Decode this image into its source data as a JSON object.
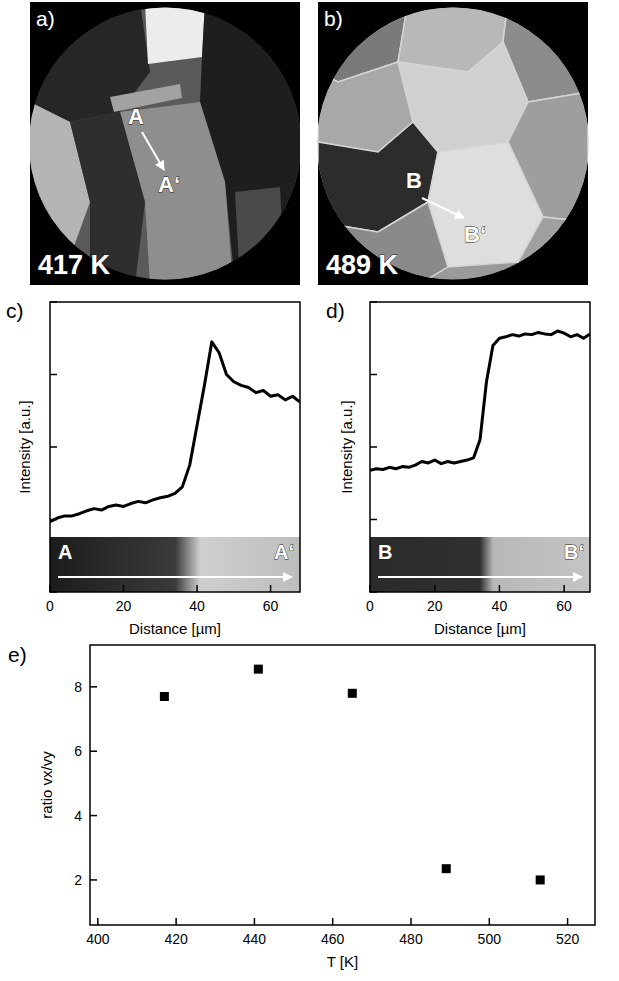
{
  "images": [
    {
      "label": "a)",
      "temperature": "417 K",
      "start": "A",
      "end": "A‘"
    },
    {
      "label": "b)",
      "temperature": "489 K",
      "start": "B",
      "end": "B‘"
    }
  ],
  "chart_data": [
    {
      "type": "line",
      "title": "c)",
      "x_label": "Distance [µm]",
      "y_label": "Intensity [a.u.]",
      "x": [
        0,
        2,
        4,
        6,
        8,
        10,
        12,
        14,
        16,
        18,
        20,
        22,
        24,
        26,
        28,
        30,
        32,
        34,
        36,
        38,
        40,
        42,
        44,
        46,
        48,
        50,
        52,
        54,
        56,
        58,
        60,
        62,
        64,
        66,
        68
      ],
      "values": [
        0.97,
        1.02,
        1.05,
        1.05,
        1.08,
        1.12,
        1.15,
        1.13,
        1.18,
        1.2,
        1.18,
        1.22,
        1.25,
        1.23,
        1.27,
        1.3,
        1.32,
        1.36,
        1.45,
        1.75,
        2.3,
        2.85,
        3.45,
        3.3,
        3.0,
        2.9,
        2.85,
        2.82,
        2.75,
        2.78,
        2.7,
        2.72,
        2.65,
        2.7,
        2.62
      ],
      "color": "#000000",
      "xlim": [
        0,
        68
      ],
      "ylim": [
        0,
        4
      ],
      "xticks": [
        0,
        20,
        40,
        60
      ],
      "yticks": [
        0,
        1,
        2,
        3,
        4
      ],
      "tick_labels": "x",
      "annotations": [
        "A",
        "A‘"
      ]
    },
    {
      "type": "line",
      "title": "d)",
      "x_label": "Distance [µm]",
      "y_label": "Intensity [a.u.]",
      "x": [
        0,
        2,
        4,
        6,
        8,
        10,
        12,
        14,
        16,
        18,
        20,
        22,
        24,
        26,
        28,
        30,
        32,
        34,
        36,
        38,
        40,
        42,
        44,
        46,
        48,
        50,
        52,
        54,
        56,
        58,
        60,
        62,
        64,
        66,
        68
      ],
      "values": [
        1.68,
        1.7,
        1.69,
        1.72,
        1.7,
        1.73,
        1.72,
        1.75,
        1.8,
        1.78,
        1.82,
        1.77,
        1.8,
        1.78,
        1.8,
        1.82,
        1.85,
        2.1,
        2.9,
        3.4,
        3.5,
        3.52,
        3.55,
        3.53,
        3.56,
        3.55,
        3.58,
        3.56,
        3.55,
        3.6,
        3.57,
        3.52,
        3.55,
        3.5,
        3.56
      ],
      "color": "#000000",
      "xlim": [
        0,
        68
      ],
      "ylim": [
        0,
        4
      ],
      "xticks": [
        0,
        20,
        40,
        60
      ],
      "yticks": [
        0,
        1,
        2,
        3,
        4
      ],
      "tick_labels": "x",
      "annotations": [
        "B",
        "B‘"
      ]
    },
    {
      "type": "scatter",
      "title": "e)",
      "x_label": "T [K]",
      "y_label": "ratio vx/vy",
      "x": [
        417,
        441,
        465,
        489,
        513
      ],
      "values": [
        7.7,
        8.55,
        7.8,
        2.35,
        2.0
      ],
      "color": "#000000",
      "marker": "square",
      "xlim": [
        398,
        527
      ],
      "ylim": [
        0.6,
        9.3
      ],
      "xticks": [
        400,
        420,
        440,
        460,
        480,
        500,
        520
      ],
      "yticks": [
        2,
        4,
        6,
        8
      ]
    }
  ]
}
